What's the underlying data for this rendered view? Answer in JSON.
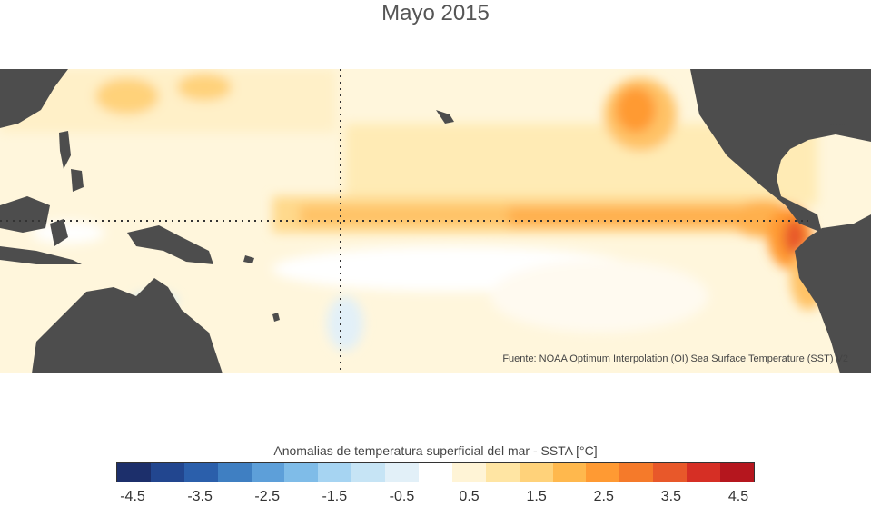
{
  "title": "Mayo 2015",
  "source": "Fuente: NOAA Optimum Interpolation (OI) Sea Surface Temperature (SST) V2",
  "legend": {
    "title": "Anomalias de temperatura superficial del mar - SSTA  [°C]",
    "colors": [
      "#1c2f6b",
      "#22468f",
      "#2b5fab",
      "#3f7fc2",
      "#5d9fd9",
      "#7fbce8",
      "#a6d4f2",
      "#c6e4f5",
      "#e2f0f8",
      "#ffffff",
      "#fff4d6",
      "#ffe5a3",
      "#ffd27a",
      "#ffb84d",
      "#ff9a33",
      "#f57a2a",
      "#e8582a",
      "#d62f25",
      "#b5161e"
    ],
    "ticks": [
      "-4.5",
      "-3.5",
      "-2.5",
      "-1.5",
      "-0.5",
      "0.5",
      "1.5",
      "2.5",
      "3.5",
      "4.5"
    ]
  }
}
